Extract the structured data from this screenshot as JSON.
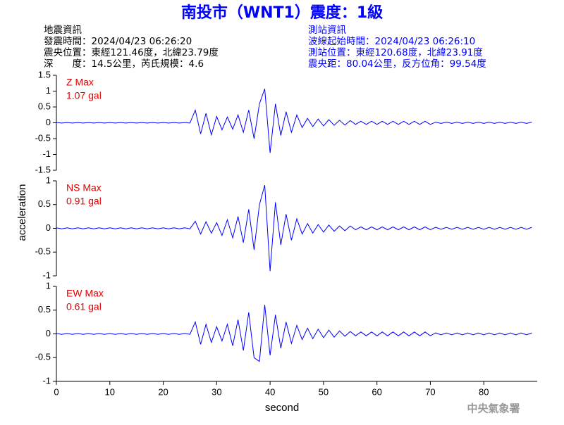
{
  "header": {
    "title": "南投市（WNT1）震度：1級",
    "left": [
      "地震資訊",
      "發震時間：2024/04/23 06:26:20",
      "震央位置：東經121.46度，北緯23.79度",
      "深　　度：14.5公里，芮氏規模：4.6"
    ],
    "right": [
      "測站資訊",
      "波線起始時間：2024/04/23 06:26:10",
      "測站位置：東經120.68度，北緯23.91度",
      "震央距：80.04公里，反方位角：99.54度"
    ]
  },
  "y_label": "acceleration",
  "x_label": "second",
  "footer": "中央氣象署",
  "chart_data": [
    {
      "type": "line",
      "label": "Z Max",
      "max_label": "1.07 gal",
      "color": "#0000ff",
      "xlim": [
        0,
        90
      ],
      "ylim": [
        -1.5,
        1.5
      ],
      "yticks": [
        -1.5,
        -1,
        -0.5,
        0,
        0.5,
        1,
        1.5
      ],
      "x": [
        0,
        1,
        2,
        3,
        4,
        5,
        6,
        7,
        8,
        9,
        10,
        11,
        12,
        13,
        14,
        15,
        16,
        17,
        18,
        19,
        20,
        21,
        22,
        23,
        24,
        25,
        26,
        27,
        28,
        29,
        30,
        31,
        32,
        33,
        34,
        35,
        36,
        37,
        38,
        39,
        40,
        41,
        42,
        43,
        44,
        45,
        46,
        47,
        48,
        49,
        50,
        51,
        52,
        53,
        54,
        55,
        56,
        57,
        58,
        59,
        60,
        61,
        62,
        63,
        64,
        65,
        66,
        67,
        68,
        69,
        70,
        71,
        72,
        73,
        74,
        75,
        76,
        77,
        78,
        79,
        80,
        81,
        82,
        83,
        84,
        85,
        86,
        87,
        88,
        89
      ],
      "values": [
        0.01,
        -0.01,
        0.01,
        -0.01,
        0.01,
        -0.01,
        0.01,
        -0.01,
        0.01,
        -0.01,
        0.01,
        -0.01,
        0.01,
        -0.01,
        0.01,
        -0.01,
        0.01,
        -0.01,
        0.01,
        -0.01,
        0.01,
        -0.01,
        0.01,
        -0.01,
        0.01,
        -0.01,
        0.4,
        -0.35,
        0.3,
        -0.38,
        0.2,
        -0.22,
        0.18,
        -0.2,
        0.25,
        -0.3,
        0.4,
        -0.5,
        0.6,
        1.07,
        -0.95,
        0.6,
        -0.4,
        0.35,
        -0.3,
        0.25,
        -0.15,
        0.14,
        -0.12,
        0.12,
        -0.1,
        0.1,
        -0.08,
        0.08,
        -0.07,
        0.07,
        -0.05,
        0.05,
        -0.05,
        0.05,
        -0.05,
        0.05,
        -0.05,
        0.05,
        -0.05,
        0.05,
        -0.05,
        0.05,
        -0.05,
        0.05,
        -0.05,
        0.02,
        -0.02,
        0.02,
        -0.02,
        0.02,
        -0.02,
        0.02,
        -0.02,
        0.02,
        -0.02,
        0.02,
        -0.02,
        0.02,
        -0.02,
        0.02,
        -0.02,
        0.02,
        -0.02,
        0.02
      ]
    },
    {
      "type": "line",
      "label": "NS Max",
      "max_label": "0.91 gal",
      "color": "#0000ff",
      "xlim": [
        0,
        90
      ],
      "ylim": [
        -1,
        1
      ],
      "yticks": [
        -1,
        -0.5,
        0,
        0.5,
        1
      ],
      "x": [
        0,
        1,
        2,
        3,
        4,
        5,
        6,
        7,
        8,
        9,
        10,
        11,
        12,
        13,
        14,
        15,
        16,
        17,
        18,
        19,
        20,
        21,
        22,
        23,
        24,
        25,
        26,
        27,
        28,
        29,
        30,
        31,
        32,
        33,
        34,
        35,
        36,
        37,
        38,
        39,
        40,
        41,
        42,
        43,
        44,
        45,
        46,
        47,
        48,
        49,
        50,
        51,
        52,
        53,
        54,
        55,
        56,
        57,
        58,
        59,
        60,
        61,
        62,
        63,
        64,
        65,
        66,
        67,
        68,
        69,
        70,
        71,
        72,
        73,
        74,
        75,
        76,
        77,
        78,
        79,
        80,
        81,
        82,
        83,
        84,
        85,
        86,
        87,
        88,
        89
      ],
      "values": [
        0.01,
        -0.01,
        0.01,
        -0.01,
        0.01,
        -0.01,
        0.01,
        -0.01,
        0.01,
        -0.01,
        0.01,
        -0.01,
        0.01,
        -0.01,
        0.01,
        -0.01,
        0.01,
        -0.01,
        0.01,
        -0.01,
        0.01,
        -0.01,
        0.01,
        -0.01,
        0.01,
        -0.01,
        0.15,
        -0.12,
        0.14,
        -0.1,
        0.12,
        -0.15,
        0.18,
        -0.2,
        0.25,
        -0.3,
        0.4,
        -0.45,
        0.5,
        0.91,
        -0.9,
        0.55,
        -0.35,
        0.3,
        -0.25,
        0.2,
        -0.12,
        0.1,
        -0.1,
        0.08,
        -0.08,
        0.07,
        -0.06,
        0.05,
        -0.05,
        0.05,
        -0.03,
        0.03,
        -0.03,
        0.03,
        -0.03,
        0.03,
        -0.03,
        0.03,
        -0.03,
        0.03,
        -0.03,
        0.03,
        -0.03,
        0.03,
        -0.03,
        0.02,
        -0.02,
        0.02,
        -0.02,
        0.02,
        -0.02,
        0.02,
        -0.02,
        0.02,
        -0.02,
        0.02,
        -0.02,
        0.02,
        -0.02,
        0.02,
        -0.02,
        0.02,
        -0.02,
        0.02
      ]
    },
    {
      "type": "line",
      "label": "EW Max",
      "max_label": "0.61 gal",
      "color": "#0000ff",
      "xlim": [
        0,
        90
      ],
      "ylim": [
        -1,
        1
      ],
      "yticks": [
        -1,
        -0.5,
        0,
        0.5,
        1
      ],
      "xticks": [
        0,
        10,
        20,
        30,
        40,
        50,
        60,
        70,
        80
      ],
      "x": [
        0,
        1,
        2,
        3,
        4,
        5,
        6,
        7,
        8,
        9,
        10,
        11,
        12,
        13,
        14,
        15,
        16,
        17,
        18,
        19,
        20,
        21,
        22,
        23,
        24,
        25,
        26,
        27,
        28,
        29,
        30,
        31,
        32,
        33,
        34,
        35,
        36,
        37,
        38,
        39,
        40,
        41,
        42,
        43,
        44,
        45,
        46,
        47,
        48,
        49,
        50,
        51,
        52,
        53,
        54,
        55,
        56,
        57,
        58,
        59,
        60,
        61,
        62,
        63,
        64,
        65,
        66,
        67,
        68,
        69,
        70,
        71,
        72,
        73,
        74,
        75,
        76,
        77,
        78,
        79,
        80,
        81,
        82,
        83,
        84,
        85,
        86,
        87,
        88,
        89
      ],
      "values": [
        0.01,
        -0.01,
        0.01,
        -0.01,
        0.01,
        -0.01,
        0.01,
        -0.01,
        0.01,
        -0.01,
        0.01,
        -0.01,
        0.01,
        -0.01,
        0.01,
        -0.01,
        0.01,
        -0.01,
        0.01,
        -0.01,
        0.01,
        -0.01,
        0.01,
        -0.01,
        0.01,
        -0.01,
        0.25,
        -0.22,
        0.2,
        -0.18,
        0.15,
        -0.15,
        0.2,
        -0.25,
        0.3,
        -0.35,
        0.45,
        -0.5,
        -0.58,
        0.61,
        -0.45,
        0.4,
        -0.3,
        0.25,
        -0.2,
        0.18,
        -0.12,
        0.12,
        -0.1,
        0.1,
        -0.08,
        0.08,
        -0.07,
        0.06,
        -0.05,
        0.05,
        -0.04,
        0.04,
        -0.04,
        0.04,
        -0.04,
        0.04,
        -0.04,
        0.04,
        -0.04,
        0.04,
        -0.04,
        0.04,
        -0.04,
        0.04,
        -0.04,
        0.02,
        -0.02,
        0.02,
        -0.02,
        0.02,
        -0.02,
        0.02,
        -0.02,
        0.02,
        -0.02,
        0.02,
        -0.02,
        0.02,
        -0.02,
        0.02,
        -0.02,
        0.02,
        -0.02,
        0.02
      ]
    }
  ]
}
